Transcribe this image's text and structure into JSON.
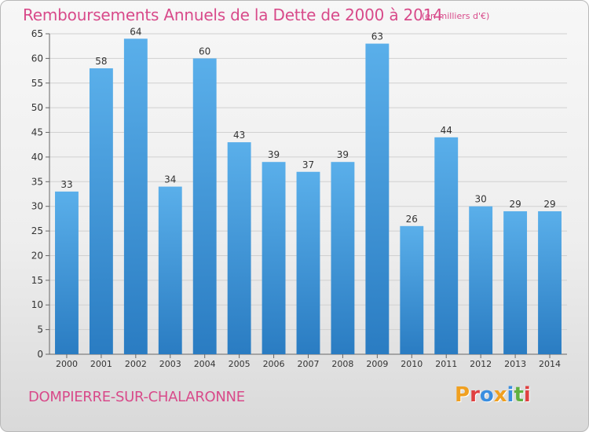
{
  "header": {
    "title": "Remboursements Annuels de la Dette de 2000 à 2014",
    "unit": "(en milliers d'€)"
  },
  "footer": {
    "town": "DOMPIERRE-SUR-CHALARONNE",
    "logo": "Proxiti",
    "logo_colors": [
      "#f0a020",
      "#e04040",
      "#3a8ee0",
      "#f0a020",
      "#3a8ee0",
      "#60b040",
      "#e04040"
    ]
  },
  "colors": {
    "title": "#d84a8a",
    "bar_top": "#5aafea",
    "bar_bottom": "#2a7cc2"
  },
  "chart_data": {
    "type": "bar",
    "categories": [
      "2000",
      "2001",
      "2002",
      "2003",
      "2004",
      "2005",
      "2006",
      "2007",
      "2008",
      "2009",
      "2010",
      "2011",
      "2012",
      "2013",
      "2014"
    ],
    "values": [
      33,
      58,
      64,
      34,
      60,
      43,
      39,
      37,
      39,
      63,
      26,
      44,
      30,
      29,
      29
    ],
    "y_ticks": [
      0,
      5,
      10,
      15,
      20,
      25,
      30,
      35,
      40,
      45,
      50,
      55,
      60,
      65
    ],
    "ylim": [
      0,
      65
    ],
    "grid": true,
    "data_labels": true
  }
}
